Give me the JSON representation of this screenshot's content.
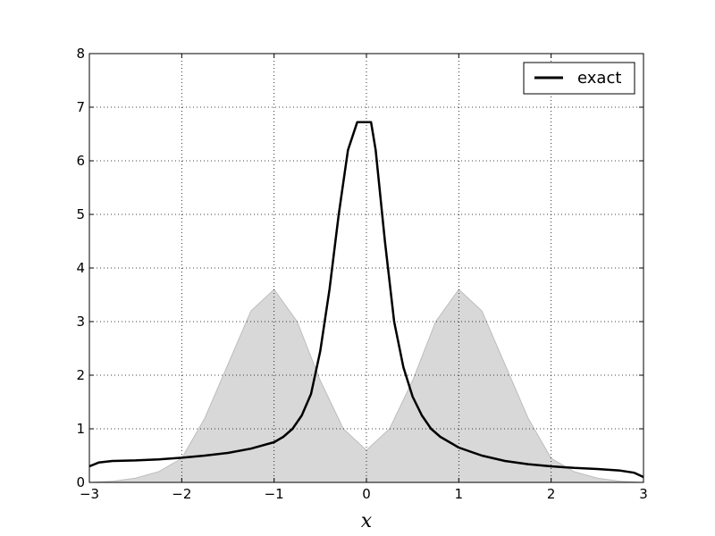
{
  "chart_data": {
    "type": "line",
    "xlabel": "x",
    "ylabel": "",
    "xlim": [
      -3,
      3
    ],
    "ylim": [
      0,
      8
    ],
    "xticks": [
      -3,
      -2,
      -1,
      0,
      1,
      2,
      3
    ],
    "xtick_labels": [
      "−3",
      "−2",
      "−1",
      "0",
      "1",
      "2",
      "3"
    ],
    "yticks": [
      0,
      1,
      2,
      3,
      4,
      5,
      6,
      7,
      8
    ],
    "ytick_labels": [
      "0",
      "1",
      "2",
      "3",
      "4",
      "5",
      "6",
      "7",
      "8"
    ],
    "grid": true,
    "legend": {
      "placement": "top-right",
      "entries": [
        "exact"
      ]
    },
    "series": [
      {
        "name": "exact",
        "color": "#000000",
        "x": [
          -3.0,
          -2.9,
          -2.75,
          -2.5,
          -2.25,
          -2.0,
          -1.75,
          -1.5,
          -1.25,
          -1.0,
          -0.9,
          -0.8,
          -0.7,
          -0.6,
          -0.5,
          -0.4,
          -0.3,
          -0.2,
          -0.1,
          -0.05,
          0.0,
          0.05,
          0.1,
          0.2,
          0.3,
          0.4,
          0.5,
          0.6,
          0.7,
          0.8,
          0.9,
          1.0,
          1.25,
          1.5,
          1.75,
          2.0,
          2.25,
          2.5,
          2.75,
          2.9,
          3.0
        ],
        "y": [
          0.3,
          0.37,
          0.4,
          0.41,
          0.43,
          0.46,
          0.5,
          0.55,
          0.63,
          0.75,
          0.85,
          1.0,
          1.25,
          1.65,
          2.45,
          3.6,
          5.0,
          6.2,
          6.72,
          6.72,
          6.72,
          6.72,
          6.2,
          4.5,
          3.0,
          2.15,
          1.6,
          1.25,
          1.0,
          0.85,
          0.75,
          0.65,
          0.5,
          0.4,
          0.34,
          0.3,
          0.27,
          0.25,
          0.22,
          0.18,
          0.1
        ]
      }
    ],
    "background_fill": {
      "color": "#d8d8d8",
      "x": [
        -3.0,
        -2.75,
        -2.5,
        -2.25,
        -2.0,
        -1.75,
        -1.5,
        -1.25,
        -1.0,
        -0.75,
        -0.5,
        -0.25,
        0.0,
        0.25,
        0.5,
        0.75,
        1.0,
        1.25,
        1.5,
        1.75,
        2.0,
        2.25,
        2.5,
        2.75,
        3.0
      ],
      "y": [
        0.0,
        0.02,
        0.08,
        0.2,
        0.45,
        1.2,
        2.2,
        3.2,
        3.6,
        3.0,
        1.9,
        1.0,
        0.6,
        1.0,
        1.9,
        3.0,
        3.6,
        3.2,
        2.2,
        1.2,
        0.45,
        0.2,
        0.08,
        0.02,
        0.0
      ]
    }
  }
}
